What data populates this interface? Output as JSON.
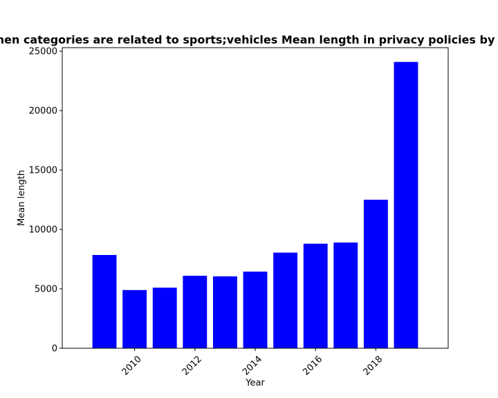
{
  "chart_data": {
    "type": "bar",
    "title": "When categories are related to sports;vehicles Mean length in privacy policies by year",
    "xlabel": "Year",
    "ylabel": "Mean length",
    "x": [
      2009,
      2010,
      2011,
      2012,
      2013,
      2014,
      2015,
      2016,
      2017,
      2018,
      2019
    ],
    "values": [
      7850,
      4900,
      5100,
      6100,
      6050,
      6450,
      8050,
      8800,
      8900,
      12500,
      24100
    ],
    "bar_color": "#0000ff",
    "xlim": [
      2007.6,
      2020.4
    ],
    "ylim": [
      0,
      25300
    ],
    "xticks": [
      2010,
      2012,
      2014,
      2016,
      2018
    ],
    "yticks": [
      0,
      5000,
      10000,
      15000,
      20000,
      25000
    ],
    "grid": false
  }
}
